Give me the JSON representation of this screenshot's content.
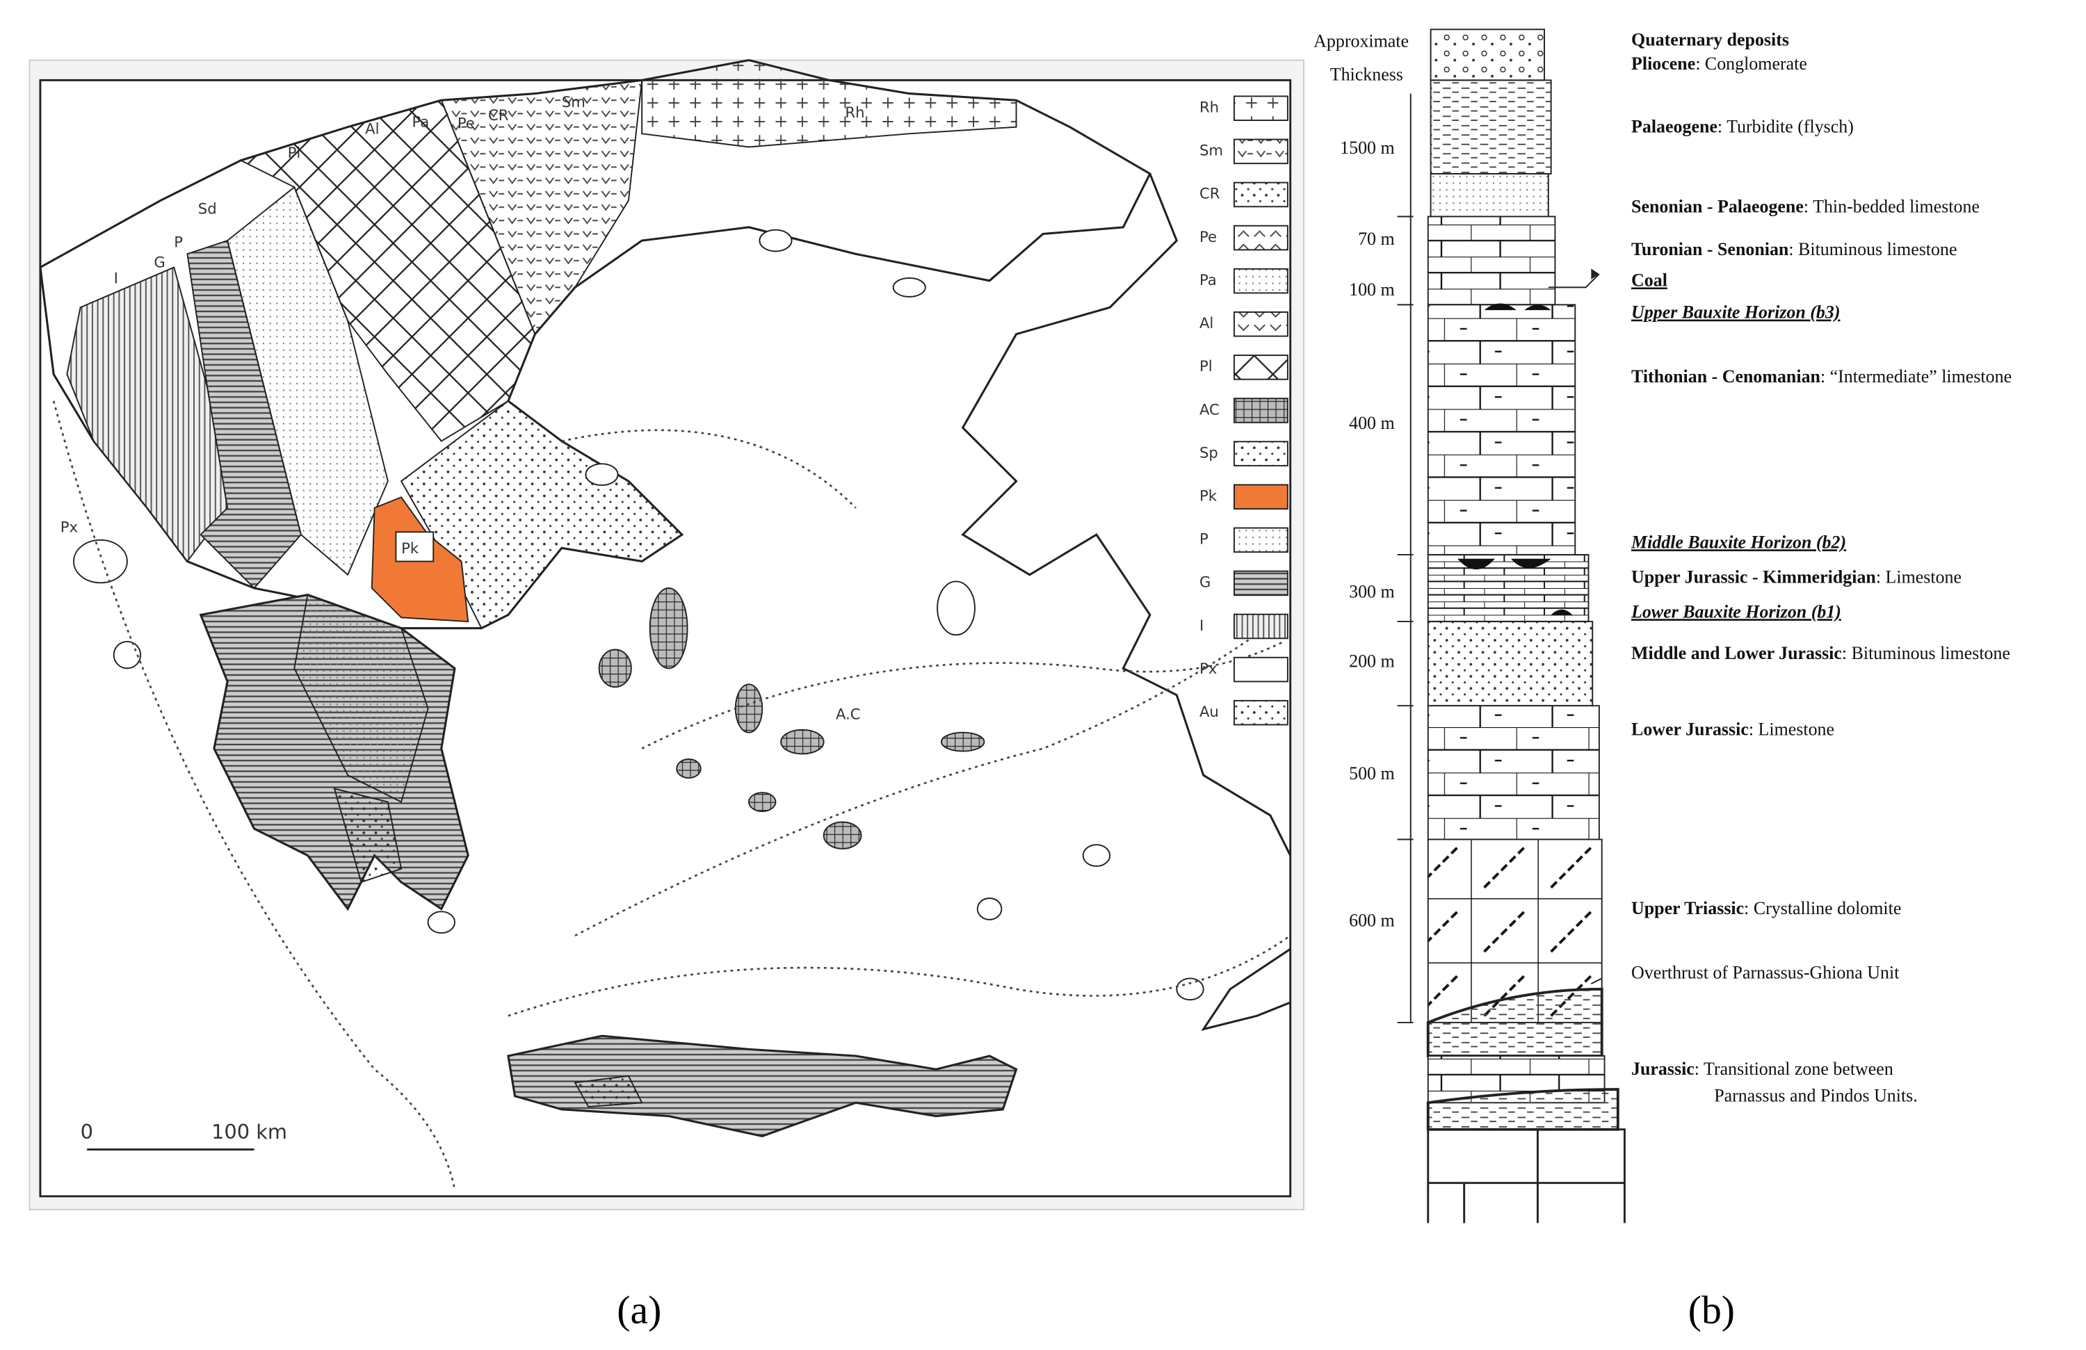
{
  "map": {
    "labels": [
      "I",
      "G",
      "P",
      "Sd",
      "Pl",
      "Al",
      "Pa",
      "Pe",
      "CR",
      "Sm",
      "Rh",
      "Px",
      "Pk",
      "A.C"
    ],
    "legend": [
      "Rh",
      "Sm",
      "CR",
      "Pe",
      "Pa",
      "Al",
      "Pl",
      "AC",
      "Sp",
      "Pk",
      "P",
      "G",
      "I",
      "Px",
      "Au"
    ],
    "scale": [
      "0",
      "100 km"
    ],
    "caption": "(a)"
  },
  "column": {
    "header": [
      "Approximate",
      "Thickness"
    ],
    "thickness": [
      "1500 m",
      "70 m",
      "100 m",
      "400 m",
      "300 m",
      "200 m",
      "500 m",
      "600 m"
    ],
    "units": [
      {
        "name": "Quaternary deposits"
      },
      {
        "name": "Pliocene",
        "detail": ": Conglomerate"
      },
      {
        "name": "Palaeogene",
        "detail": ": Turbidite (flysch)"
      },
      {
        "name": "Senonian - Palaeogene",
        "detail": ": Thin-bedded limestone"
      },
      {
        "name": "Turonian - Senonian",
        "detail": ": Bituminous limestone"
      },
      {
        "name": "Coal"
      },
      {
        "name": "Upper Bauxite Horizon (b3)"
      },
      {
        "name": "Tithonian - Cenomanian",
        "detail": ": “Intermediate” limestone"
      },
      {
        "name": "Middle Bauxite Horizon (b2)"
      },
      {
        "name": "Upper Jurassic - Kimmeridgian",
        "detail": ": Limestone"
      },
      {
        "name": "Lower Bauxite Horizon (b1)"
      },
      {
        "name": "Middle and Lower Jurassic",
        "detail": ": Bituminous limestone"
      },
      {
        "name": "Lower Jurassic",
        "detail": ": Limestone"
      },
      {
        "name": "Upper Triassic",
        "detail": ": Crystalline dolomite"
      },
      {
        "name": "Overthrust of Parnassus-Ghiona Unit"
      },
      {
        "name": "Jurassic",
        "detail": ": Transitional zone between",
        "detail2": "Parnassus and Pindos Units."
      }
    ],
    "caption": "(b)"
  }
}
